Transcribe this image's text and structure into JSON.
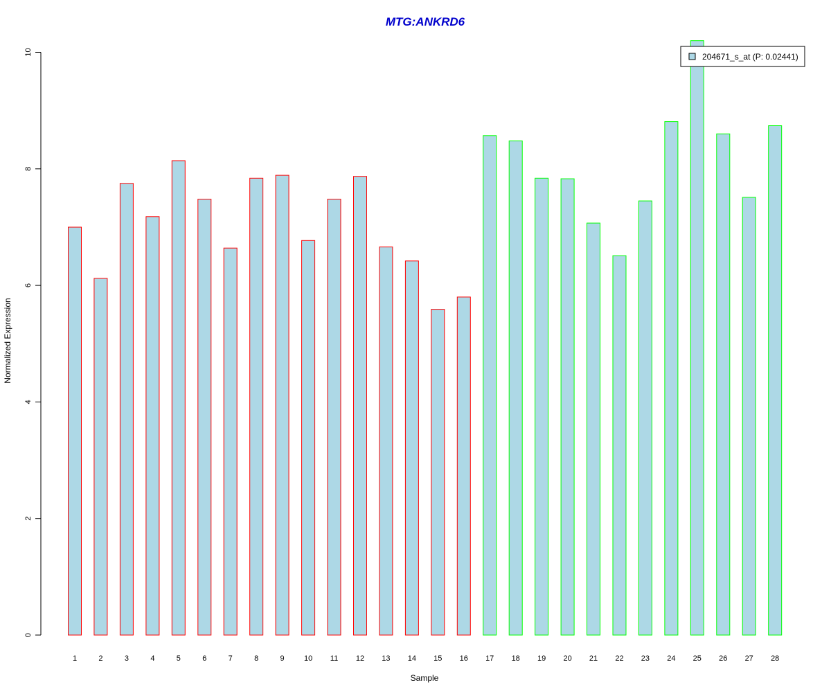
{
  "chart_data": {
    "type": "bar",
    "title": "MTG:ANKRD6",
    "xlabel": "Sample",
    "ylabel": "Normalized Expression",
    "ylim": [
      0,
      10
    ],
    "yticks": [
      0,
      2,
      4,
      6,
      8,
      10
    ],
    "categories": [
      "1",
      "2",
      "3",
      "4",
      "5",
      "6",
      "7",
      "8",
      "9",
      "10",
      "11",
      "12",
      "13",
      "14",
      "15",
      "16",
      "17",
      "18",
      "19",
      "20",
      "21",
      "22",
      "23",
      "24",
      "25",
      "26",
      "27",
      "28"
    ],
    "series": [
      {
        "name": "204671_s_at (P: 0.02441)",
        "values": [
          7.0,
          6.12,
          7.75,
          7.18,
          8.14,
          7.48,
          6.64,
          7.84,
          7.89,
          6.77,
          7.48,
          7.87,
          6.66,
          6.42,
          5.59,
          5.8,
          8.57,
          8.48,
          7.84,
          7.83,
          7.07,
          6.51,
          7.45,
          8.81,
          10.2,
          8.6,
          7.51,
          8.74
        ],
        "fill": "#add8e6",
        "border_colors": [
          "#ff0000",
          "#ff0000",
          "#ff0000",
          "#ff0000",
          "#ff0000",
          "#ff0000",
          "#ff0000",
          "#ff0000",
          "#ff0000",
          "#ff0000",
          "#ff0000",
          "#ff0000",
          "#ff0000",
          "#ff0000",
          "#ff0000",
          "#ff0000",
          "#00ff00",
          "#00ff00",
          "#00ff00",
          "#00ff00",
          "#00ff00",
          "#00ff00",
          "#00ff00",
          "#00ff00",
          "#00ff00",
          "#00ff00",
          "#00ff00",
          "#00ff00"
        ]
      }
    ],
    "legend": {
      "position": "top-right",
      "label": "204671_s_at (P: 0.02441)"
    },
    "grid": false,
    "colors": {
      "title": "#0000cc",
      "axis": "#000000",
      "text": "#000000"
    }
  }
}
